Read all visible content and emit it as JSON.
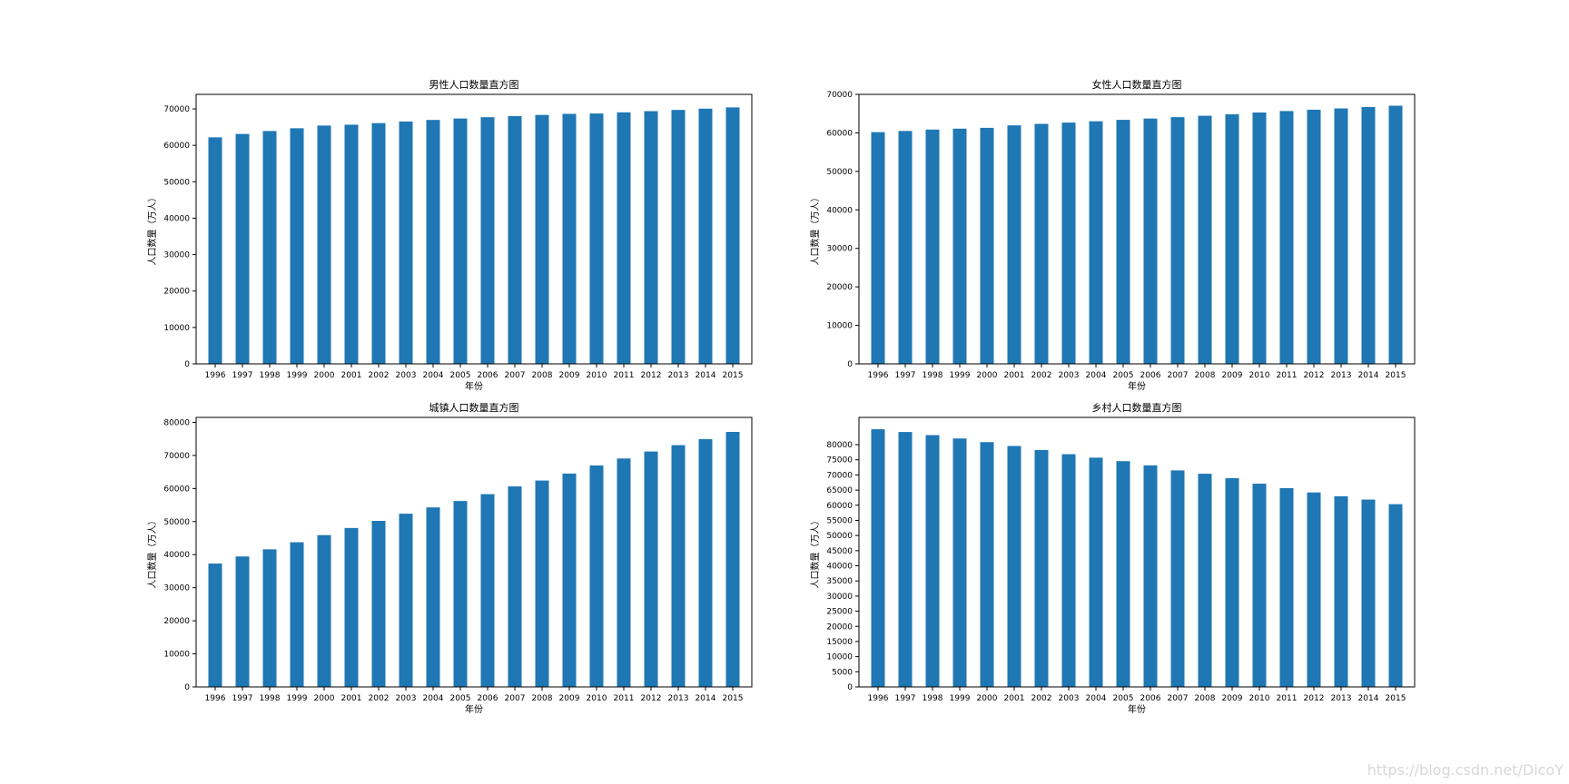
{
  "watermark": "https://blog.csdn.net/DicoY",
  "colors": {
    "bar": "#1f77b4",
    "axis": "#000000",
    "background": "#ffffff"
  },
  "chart_data": [
    {
      "type": "bar",
      "title": "男性人口数量直方图",
      "xlabel": "年份",
      "ylabel": "人口数量（万人）",
      "categories": [
        "1996",
        "1997",
        "1998",
        "1999",
        "2000",
        "2001",
        "2002",
        "2003",
        "2004",
        "2005",
        "2006",
        "2007",
        "2008",
        "2009",
        "2010",
        "2011",
        "2012",
        "2013",
        "2014",
        "2015"
      ],
      "values": [
        62200,
        63131,
        63940,
        64692,
        65437,
        65672,
        66115,
        66556,
        66976,
        67375,
        67728,
        68048,
        68357,
        68647,
        68748,
        69068,
        69395,
        69728,
        70079,
        70414
      ],
      "ylim": [
        0,
        74000
      ],
      "yticks": [
        0,
        10000,
        20000,
        30000,
        40000,
        50000,
        60000,
        70000
      ],
      "grid": false
    },
    {
      "type": "bar",
      "title": "女性人口数量直方图",
      "xlabel": "年份",
      "ylabel": "人口数量（万人）",
      "categories": [
        "1996",
        "1997",
        "1998",
        "1999",
        "2000",
        "2001",
        "2002",
        "2003",
        "2004",
        "2005",
        "2006",
        "2007",
        "2008",
        "2009",
        "2010",
        "2011",
        "2012",
        "2013",
        "2014",
        "2015"
      ],
      "values": [
        60189,
        60495,
        60856,
        61094,
        61306,
        61954,
        62338,
        62671,
        63012,
        63381,
        63720,
        64081,
        64444,
        64825,
        65287,
        65667,
        66009,
        66344,
        66703,
        67048
      ],
      "ylim": [
        0,
        70000
      ],
      "yticks": [
        0,
        10000,
        20000,
        30000,
        40000,
        50000,
        60000,
        70000
      ],
      "grid": false
    },
    {
      "type": "bar",
      "title": "城镇人口数量直方图",
      "xlabel": "年份",
      "ylabel": "人口数量（万人）",
      "categories": [
        "1996",
        "1997",
        "1998",
        "1999",
        "2000",
        "2001",
        "2002",
        "2003",
        "2004",
        "2005",
        "2006",
        "2007",
        "2008",
        "2009",
        "2010",
        "2011",
        "2012",
        "2013",
        "2014",
        "2015"
      ],
      "values": [
        37304,
        39449,
        41608,
        43748,
        45906,
        48064,
        50212,
        52376,
        54283,
        56212,
        58288,
        60633,
        62403,
        64512,
        66978,
        69079,
        71182,
        73111,
        74916,
        77116
      ],
      "ylim": [
        0,
        81500
      ],
      "yticks": [
        0,
        10000,
        20000,
        30000,
        40000,
        50000,
        60000,
        70000,
        80000
      ],
      "grid": false
    },
    {
      "type": "bar",
      "title": "乡村人口数量直方图",
      "xlabel": "年份",
      "ylabel": "人口数量（万人）",
      "categories": [
        "1996",
        "1997",
        "1998",
        "1999",
        "2000",
        "2001",
        "2002",
        "2003",
        "2004",
        "2005",
        "2006",
        "2007",
        "2008",
        "2009",
        "2010",
        "2011",
        "2012",
        "2013",
        "2014",
        "2015"
      ],
      "values": [
        85085,
        84177,
        83153,
        82038,
        80837,
        79563,
        78241,
        76851,
        75705,
        74544,
        73160,
        71496,
        70399,
        68938,
        67113,
        65656,
        64222,
        62961,
        61866,
        60346
      ],
      "ylim": [
        0,
        89000
      ],
      "yticks": [
        0,
        5000,
        10000,
        15000,
        20000,
        25000,
        30000,
        35000,
        40000,
        45000,
        50000,
        55000,
        60000,
        65000,
        70000,
        75000,
        80000
      ],
      "grid": false
    }
  ]
}
